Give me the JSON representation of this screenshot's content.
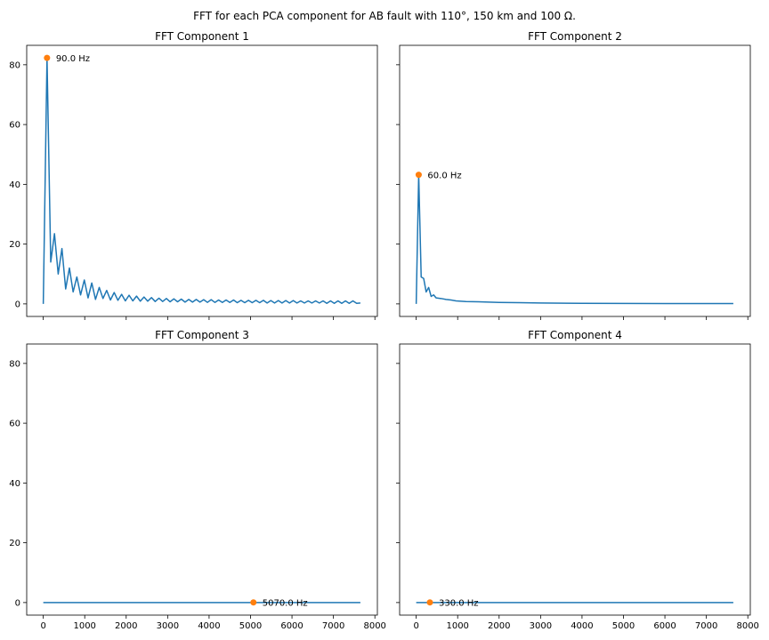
{
  "figure_title": "FFT for each PCA component for AB fault with 110°, 150 km and 100 Ω.",
  "colors": {
    "line": "#1f77b4",
    "peak_marker": "#ff7f0e",
    "axes": "#000000",
    "background": "#ffffff"
  },
  "shared_axes": {
    "xlim": [
      -400,
      8060
    ],
    "ylim": [
      -4.2,
      86.5
    ],
    "x_ticks": [
      0,
      1000,
      2000,
      3000,
      4000,
      5000,
      6000,
      7000,
      8000
    ],
    "y_ticks": [
      0,
      20,
      40,
      60,
      80
    ],
    "grid": false
  },
  "chart_data": [
    {
      "type": "line",
      "title": "FFT Component 1",
      "peak": {
        "x": 90,
        "y": 82.3,
        "label": "90.0 Hz"
      },
      "series": [
        {
          "x": [
            0,
            90,
            180,
            270,
            360,
            450,
            540,
            630,
            720,
            810,
            900,
            990,
            1080,
            1170,
            1260,
            1350,
            1440,
            1530,
            1620,
            1710,
            1800,
            1890,
            1980,
            2070,
            2160,
            2250,
            2340,
            2430,
            2520,
            2610,
            2700,
            2790,
            2880,
            2970,
            3060,
            3150,
            3240,
            3330,
            3420,
            3510,
            3600,
            3690,
            3780,
            3870,
            3960,
            4050,
            4140,
            4230,
            4320,
            4410,
            4500,
            4590,
            4680,
            4770,
            4860,
            4950,
            5040,
            5130,
            5220,
            5310,
            5400,
            5490,
            5580,
            5670,
            5760,
            5850,
            5940,
            6030,
            6120,
            6210,
            6300,
            6390,
            6480,
            6570,
            6660,
            6750,
            6840,
            6930,
            7020,
            7110,
            7200,
            7290,
            7380,
            7470,
            7560,
            7650
          ],
          "y": [
            0,
            82.3,
            14,
            23.5,
            10,
            18.5,
            5,
            12,
            4,
            9,
            3,
            8,
            2,
            7,
            1.5,
            5.5,
            1.8,
            4.5,
            1.3,
            3.8,
            1.2,
            3.2,
            1,
            2.9,
            1,
            2.6,
            0.9,
            2.3,
            0.9,
            2.1,
            0.8,
            1.9,
            0.8,
            1.8,
            0.7,
            1.7,
            0.7,
            1.6,
            0.6,
            1.5,
            0.6,
            1.5,
            0.6,
            1.4,
            0.5,
            1.4,
            0.5,
            1.3,
            0.5,
            1.3,
            0.5,
            1.3,
            0.4,
            1.2,
            0.4,
            1.2,
            0.4,
            1.2,
            0.4,
            1.2,
            0.3,
            1.1,
            0.3,
            1.1,
            0.3,
            1.1,
            0.3,
            1.1,
            0.3,
            1,
            0.3,
            1,
            0.3,
            1,
            0.3,
            1,
            0.2,
            1,
            0.2,
            1,
            0.2,
            1,
            0.2,
            1,
            0.2,
            0.3
          ]
        }
      ]
    },
    {
      "type": "line",
      "title": "FFT Component 2",
      "peak": {
        "x": 60,
        "y": 43.2,
        "label": "60.0 Hz"
      },
      "series": [
        {
          "x": [
            0,
            60,
            120,
            180,
            240,
            300,
            360,
            420,
            480,
            600,
            720,
            840,
            960,
            1200,
            1500,
            2000,
            2500,
            3000,
            4000,
            5000,
            6000,
            7000,
            7650
          ],
          "y": [
            0,
            43.2,
            9,
            8.5,
            4,
            5.5,
            2.5,
            3,
            2,
            1.8,
            1.5,
            1.3,
            1,
            0.8,
            0.7,
            0.5,
            0.4,
            0.3,
            0.2,
            0.15,
            0.1,
            0.1,
            0.1
          ]
        }
      ]
    },
    {
      "type": "line",
      "title": "FFT Component 3",
      "peak": {
        "x": 5070,
        "y": 0.05,
        "label": "5070.0 Hz"
      },
      "series": [
        {
          "x": [
            0,
            7650
          ],
          "y": [
            0,
            0
          ]
        }
      ]
    },
    {
      "type": "line",
      "title": "FFT Component 4",
      "peak": {
        "x": 330,
        "y": 0.05,
        "label": "330.0 Hz"
      },
      "series": [
        {
          "x": [
            0,
            7650
          ],
          "y": [
            0,
            0
          ]
        }
      ]
    }
  ]
}
